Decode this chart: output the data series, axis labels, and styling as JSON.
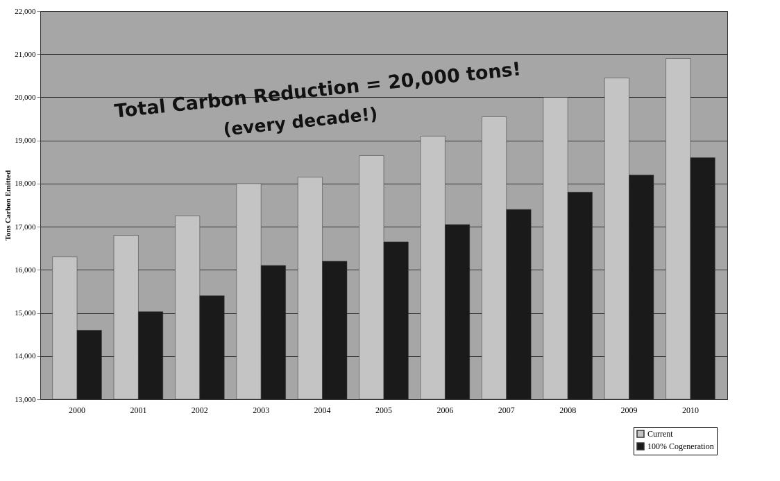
{
  "chart_data": {
    "type": "bar",
    "ylabel": "Tons Carbon Emitted",
    "categories": [
      "2000",
      "2001",
      "2002",
      "2003",
      "2004",
      "2005",
      "2006",
      "2007",
      "2008",
      "2009",
      "2010"
    ],
    "series": [
      {
        "name": "Current",
        "color": "#c4c4c4",
        "values": [
          16300,
          16800,
          17250,
          18000,
          18150,
          18650,
          19100,
          19550,
          20000,
          20450,
          20900
        ]
      },
      {
        "name": "100% Cogeneration",
        "color": "#1a1a1a",
        "values": [
          14600,
          15030,
          15400,
          16100,
          16200,
          16650,
          17050,
          17400,
          17800,
          18200,
          18600
        ]
      }
    ],
    "ylim": [
      13000,
      22000
    ],
    "yticks": [
      {
        "value": 13000,
        "label": "13,000"
      },
      {
        "value": 14000,
        "label": "14,000"
      },
      {
        "value": 15000,
        "label": "15,000"
      },
      {
        "value": 16000,
        "label": "16,000"
      },
      {
        "value": 17000,
        "label": "17,000"
      },
      {
        "value": 18000,
        "label": "18,000"
      },
      {
        "value": 19000,
        "label": "19,000"
      },
      {
        "value": 20000,
        "label": "20,000"
      },
      {
        "value": 21000,
        "label": "21,000"
      },
      {
        "value": 22000,
        "label": "22,000"
      }
    ],
    "annotations": [
      "Total Carbon Reduction = 20,000 tons!",
      "(every decade!)"
    ],
    "grid": "y",
    "legend": "bottom right"
  }
}
